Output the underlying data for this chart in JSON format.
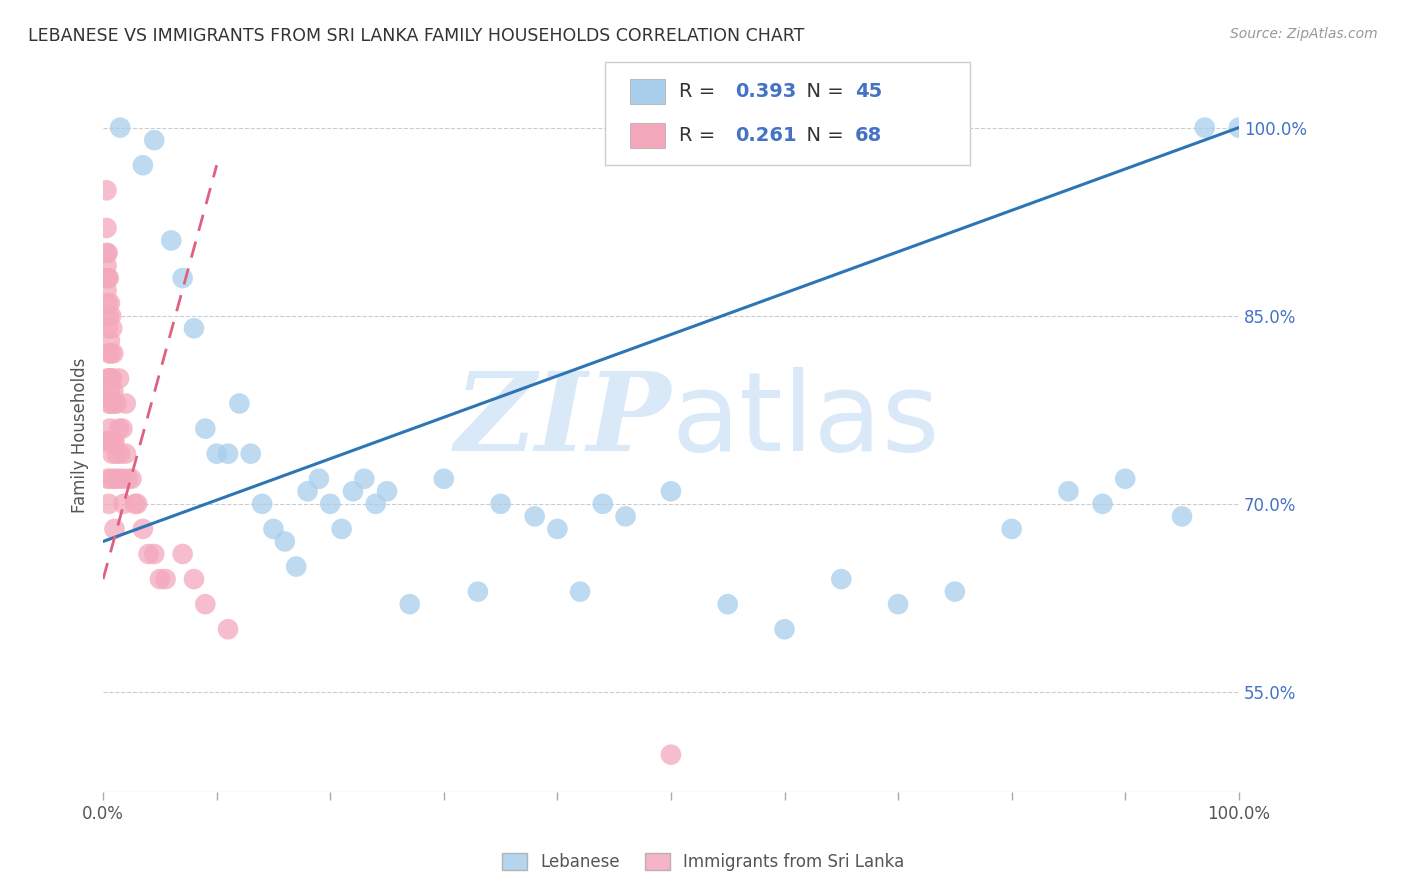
{
  "title": "LEBANESE VS IMMIGRANTS FROM SRI LANKA FAMILY HOUSEHOLDS CORRELATION CHART",
  "source": "Source: ZipAtlas.com",
  "ylabel": "Family Households",
  "right_ytick_values": [
    55.0,
    70.0,
    85.0,
    100.0
  ],
  "legend_blue_label": "Lebanese",
  "legend_pink_label": "Immigrants from Sri Lanka",
  "R_blue": 0.393,
  "N_blue": 45,
  "R_pink": 0.261,
  "N_pink": 68,
  "blue_color": "#A8CEEC",
  "pink_color": "#F4A8BC",
  "blue_line_color": "#2E75B6",
  "pink_line_color": "#E06080",
  "watermark_zip": "ZIP",
  "watermark_atlas": "atlas",
  "watermark_color": "#DAE9F7",
  "xlim": [
    0,
    100
  ],
  "ylim": [
    47,
    104
  ],
  "blue_scatter_x": [
    1.5,
    3.5,
    4.5,
    6,
    7,
    8,
    9,
    10,
    11,
    12,
    13,
    14,
    15,
    16,
    17,
    18,
    19,
    20,
    21,
    22,
    23,
    24,
    25,
    27,
    30,
    33,
    35,
    38,
    40,
    42,
    44,
    46,
    50,
    55,
    60,
    65,
    70,
    75,
    80,
    85,
    88,
    90,
    95,
    97,
    100
  ],
  "blue_scatter_y": [
    100,
    97,
    99,
    91,
    88,
    84,
    76,
    74,
    74,
    78,
    74,
    70,
    68,
    67,
    65,
    71,
    72,
    70,
    68,
    71,
    72,
    70,
    71,
    62,
    72,
    63,
    70,
    69,
    68,
    63,
    70,
    69,
    71,
    62,
    60,
    64,
    62,
    63,
    68,
    71,
    70,
    72,
    69,
    100,
    100
  ],
  "pink_scatter_x": [
    0.3,
    0.3,
    0.3,
    0.3,
    0.3,
    0.3,
    0.3,
    0.4,
    0.4,
    0.4,
    0.4,
    0.4,
    0.4,
    0.4,
    0.4,
    0.5,
    0.5,
    0.5,
    0.5,
    0.5,
    0.5,
    0.5,
    0.6,
    0.6,
    0.6,
    0.6,
    0.7,
    0.7,
    0.7,
    0.7,
    0.7,
    0.7,
    0.8,
    0.8,
    0.8,
    0.8,
    0.9,
    0.9,
    0.9,
    1.0,
    1.0,
    1.0,
    1.0,
    1.2,
    1.2,
    1.4,
    1.4,
    1.4,
    1.5,
    1.7,
    1.7,
    1.8,
    2.0,
    2.0,
    2.2,
    2.5,
    2.8,
    3.0,
    3.5,
    4.0,
    4.5,
    5.0,
    5.5,
    7.0,
    8.0,
    9.0,
    11.0,
    50.0
  ],
  "pink_scatter_y": [
    95,
    92,
    90,
    89,
    88,
    87,
    75,
    90,
    88,
    86,
    84,
    80,
    79,
    75,
    72,
    88,
    85,
    82,
    80,
    78,
    75,
    70,
    86,
    83,
    79,
    76,
    85,
    82,
    80,
    78,
    75,
    72,
    84,
    80,
    78,
    74,
    82,
    79,
    75,
    78,
    75,
    72,
    68,
    78,
    74,
    80,
    76,
    72,
    74,
    76,
    72,
    70,
    78,
    74,
    72,
    72,
    70,
    70,
    68,
    66,
    66,
    64,
    64,
    66,
    64,
    62,
    60,
    50
  ],
  "blue_trend": [
    0,
    67,
    100,
    100
  ],
  "pink_trend": [
    0,
    64,
    10,
    97
  ]
}
